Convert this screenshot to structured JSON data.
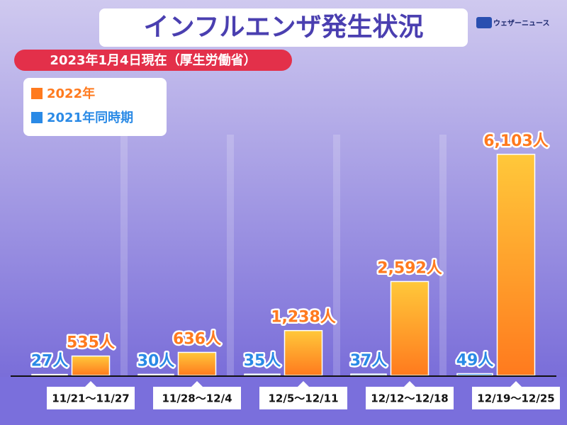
{
  "chart_data": {
    "type": "bar",
    "title": "インフルエンザ発生状況",
    "subtitle": "2023年1月4日現在（厚生労働省）",
    "brand": "ウェザーニュース",
    "categories": [
      "11/21〜11/27",
      "11/28〜12/4",
      "12/5〜12/11",
      "12/12〜12/18",
      "12/19〜12/25"
    ],
    "series": [
      {
        "name": "2022年",
        "color": "#ff7a1e",
        "values": [
          535,
          636,
          1238,
          2592,
          6103
        ],
        "value_labels": [
          "535人",
          "636人",
          "1,238人",
          "2,592人",
          "6,103人"
        ]
      },
      {
        "name": "2021年同時期",
        "color": "#2a8ae6",
        "values": [
          27,
          30,
          35,
          37,
          49
        ],
        "value_labels": [
          "27人",
          "30人",
          "35人",
          "37人",
          "49人"
        ]
      }
    ],
    "ylim": [
      0,
      7000
    ]
  }
}
